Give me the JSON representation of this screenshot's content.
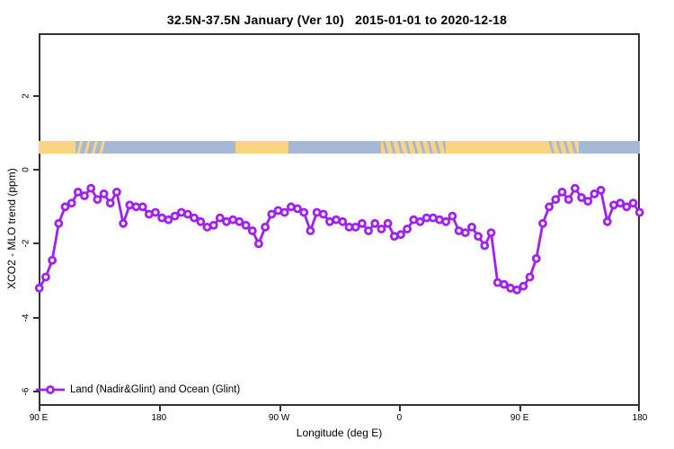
{
  "chart_data": {
    "type": "line",
    "title": "32.5N-37.5N January (Ver 10)   2015-01-01 to 2020-12-18",
    "xlabel": "Longitude (deg E)",
    "ylabel": "XCO2 - MLO trend (ppm)",
    "grid": false,
    "legend_position": "bottom-left",
    "frame_color": "#333333",
    "x_axis": {
      "min": 90,
      "max": 540,
      "note": "longitude axis wraps eastward: 90E -> 180 -> 90W -> 0 -> 90E -> 180",
      "ticks": [
        {
          "deg": 90,
          "label": "90 E"
        },
        {
          "deg": 180,
          "label": "180"
        },
        {
          "deg": 270,
          "label": "90 W"
        },
        {
          "deg": 360,
          "label": "0"
        },
        {
          "deg": 450,
          "label": "90 E"
        },
        {
          "deg": 540,
          "label": "180"
        }
      ]
    },
    "y_axis": {
      "min": -6.39,
      "max": 3.7,
      "ticks": [
        {
          "val": 2,
          "label": "2"
        },
        {
          "val": 0,
          "label": "0"
        },
        {
          "val": -2,
          "label": "-2"
        },
        {
          "val": -4,
          "label": "-4"
        },
        {
          "val": -6,
          "label": "-6"
        }
      ]
    },
    "series": [
      {
        "name": "Land (Nadir&Glint) and Ocean (Glint)",
        "color": "#A020F0",
        "marker": "open-circle",
        "x_start_deg": 90.5,
        "x_end_deg": 539.8,
        "values": [
          -3.2,
          -2.9,
          -2.45,
          -1.45,
          -1.0,
          -0.9,
          -0.6,
          -0.7,
          -0.5,
          -0.8,
          -0.65,
          -0.9,
          -0.6,
          -1.45,
          -0.95,
          -1.0,
          -1.0,
          -1.2,
          -1.15,
          -1.3,
          -1.35,
          -1.25,
          -1.15,
          -1.2,
          -1.3,
          -1.4,
          -1.55,
          -1.5,
          -1.3,
          -1.4,
          -1.35,
          -1.4,
          -1.5,
          -1.65,
          -2.0,
          -1.55,
          -1.2,
          -1.1,
          -1.15,
          -1.0,
          -1.05,
          -1.15,
          -1.65,
          -1.15,
          -1.2,
          -1.4,
          -1.35,
          -1.4,
          -1.55,
          -1.55,
          -1.45,
          -1.65,
          -1.45,
          -1.6,
          -1.45,
          -1.8,
          -1.75,
          -1.6,
          -1.35,
          -1.4,
          -1.3,
          -1.3,
          -1.35,
          -1.4,
          -1.25,
          -1.65,
          -1.7,
          -1.55,
          -1.8,
          -2.05,
          -1.7,
          -3.05,
          -3.1,
          -3.2,
          -3.25,
          -3.15,
          -2.9,
          -2.4,
          -1.45,
          -1.0,
          -0.8,
          -0.6,
          -0.8,
          -0.5,
          -0.75,
          -0.85,
          -0.65,
          -0.55,
          -1.4,
          -0.95,
          -0.9,
          -1.0,
          -0.9,
          -1.15
        ]
      }
    ],
    "land_ocean_band": {
      "v_top": 0.79,
      "v_bottom": 0.43,
      "land_color": "#FBD382",
      "ocean_color": "#A5B8D6",
      "segments": [
        {
          "from": 90,
          "to": 117.5,
          "type": "land"
        },
        {
          "from": 117.5,
          "to": 140,
          "type": "mixed-ocean"
        },
        {
          "from": 140,
          "to": 237,
          "type": "ocean"
        },
        {
          "from": 237,
          "to": 277,
          "type": "land"
        },
        {
          "from": 277,
          "to": 346,
          "type": "ocean"
        },
        {
          "from": 346,
          "to": 395,
          "type": "mixed-land"
        },
        {
          "from": 395,
          "to": 471,
          "type": "land"
        },
        {
          "from": 471,
          "to": 494,
          "type": "mixed-land"
        },
        {
          "from": 494,
          "to": 540,
          "type": "ocean"
        }
      ]
    },
    "legend": {
      "label": "Land (Nadir&Glint) and Ocean (Glint)"
    }
  }
}
